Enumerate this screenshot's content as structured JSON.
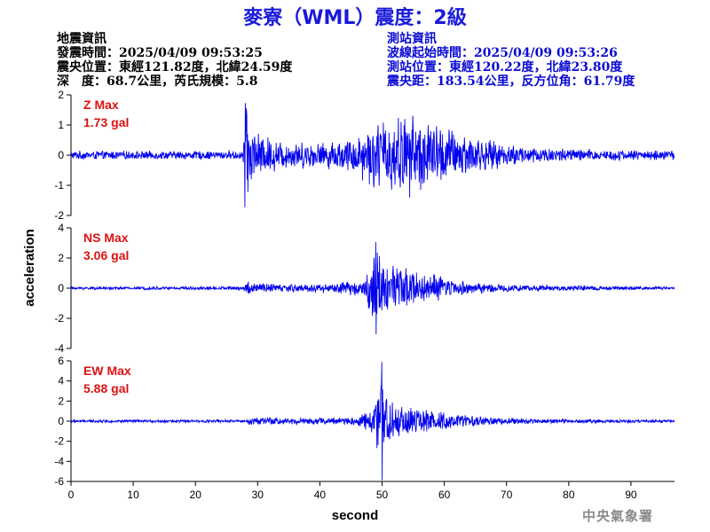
{
  "title": "麥寮（WML）震度：2級",
  "quake_info": {
    "heading": "地震資訊",
    "origin_time": "發震時間：2025/04/09 09:53:25",
    "epicenter": "震央位置：東經121.82度，北緯24.59度",
    "depth_magnitude": "深　度：68.7公里，芮氏規模：5.8"
  },
  "station_info": {
    "heading": "測站資訊",
    "wave_start": "波線起始時間：2025/04/09 09:53:26",
    "location": "測站位置：東經120.22度，北緯23.80度",
    "distance_azimuth": "震央距：183.54公里，反方位角：61.79度"
  },
  "footer": {
    "organization": "中央氣象署"
  },
  "colors": {
    "trace": "#0000ee",
    "max_label": "#dd1111",
    "title": "#1a1adc"
  },
  "chart_data": {
    "type": "line",
    "xlabel": "second",
    "ylabel": "acceleration",
    "xlim": [
      0,
      97
    ],
    "xticks": [
      0,
      10,
      20,
      30,
      40,
      50,
      60,
      70,
      80,
      90
    ],
    "grid": false,
    "panels": [
      {
        "component": "Z",
        "max_label": "Z Max",
        "max_value_label": "1.73 gal",
        "max_value": 1.73,
        "ylim": [
          -2,
          2
        ],
        "yticks": [
          -2,
          -1,
          0,
          1,
          2
        ],
        "envelope": [
          [
            0,
            0.15
          ],
          [
            27.5,
            0.15
          ],
          [
            28,
            1.7
          ],
          [
            30,
            0.8
          ],
          [
            34,
            0.5
          ],
          [
            40,
            0.45
          ],
          [
            45,
            0.6
          ],
          [
            48,
            1.1
          ],
          [
            50,
            1.3
          ],
          [
            52,
            1.4
          ],
          [
            55,
            1.5
          ],
          [
            58,
            1.2
          ],
          [
            62,
            0.9
          ],
          [
            66,
            0.6
          ],
          [
            70,
            0.4
          ],
          [
            75,
            0.3
          ],
          [
            85,
            0.2
          ],
          [
            97,
            0.17
          ]
        ]
      },
      {
        "component": "NS",
        "max_label": "NS Max",
        "max_value_label": "3.06 gal",
        "max_value": 3.06,
        "ylim": [
          -4,
          4
        ],
        "yticks": [
          -4,
          -2,
          0,
          2,
          4
        ],
        "envelope": [
          [
            0,
            0.1
          ],
          [
            27.5,
            0.12
          ],
          [
            28.5,
            0.55
          ],
          [
            30,
            0.4
          ],
          [
            35,
            0.3
          ],
          [
            42,
            0.35
          ],
          [
            47,
            0.6
          ],
          [
            48.5,
            2.6
          ],
          [
            49,
            3.06
          ],
          [
            51,
            1.8
          ],
          [
            55,
            1.3
          ],
          [
            60,
            0.8
          ],
          [
            65,
            0.45
          ],
          [
            70,
            0.25
          ],
          [
            80,
            0.18
          ],
          [
            97,
            0.12
          ]
        ]
      },
      {
        "component": "EW",
        "max_label": "EW Max",
        "max_value_label": "5.88 gal",
        "max_value": 5.88,
        "ylim": [
          -6,
          6
        ],
        "yticks": [
          -6,
          -4,
          -2,
          0,
          2,
          4,
          6
        ],
        "envelope": [
          [
            0,
            0.15
          ],
          [
            28,
            0.15
          ],
          [
            29,
            0.5
          ],
          [
            33,
            0.4
          ],
          [
            40,
            0.35
          ],
          [
            46,
            0.5
          ],
          [
            48.5,
            1.5
          ],
          [
            49.5,
            4.5
          ],
          [
            50,
            5.88
          ],
          [
            51,
            2.5
          ],
          [
            54,
            1.6
          ],
          [
            58,
            1.1
          ],
          [
            62,
            0.7
          ],
          [
            68,
            0.4
          ],
          [
            75,
            0.25
          ],
          [
            85,
            0.2
          ],
          [
            97,
            0.15
          ]
        ]
      }
    ]
  }
}
